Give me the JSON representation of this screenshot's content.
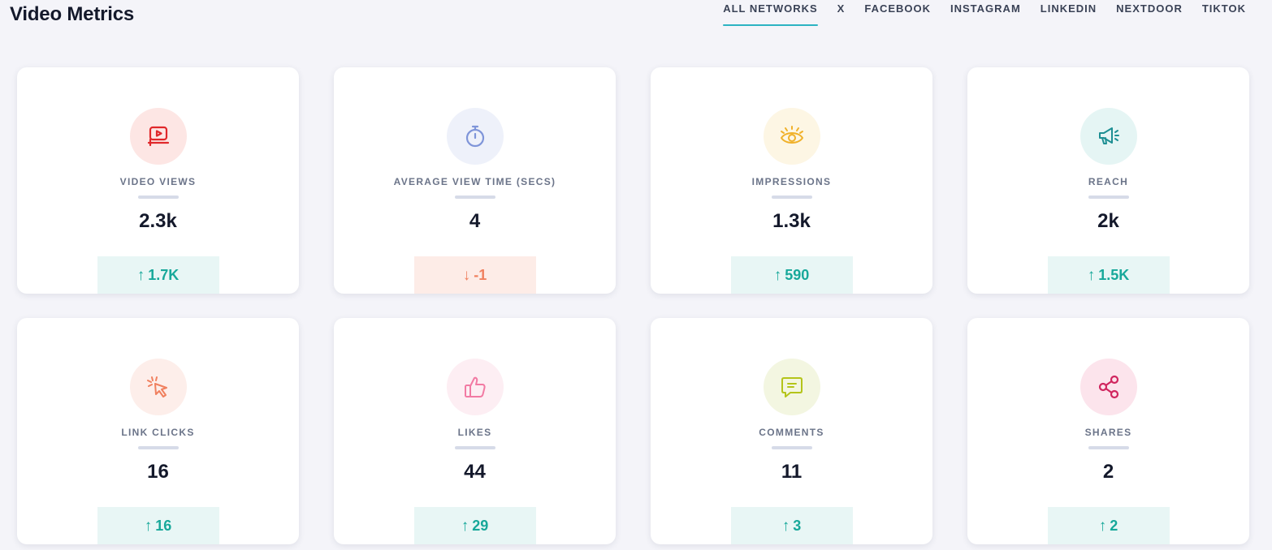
{
  "header": {
    "title": "Video Metrics",
    "tabs": [
      {
        "label": "ALL NETWORKS",
        "active": true
      },
      {
        "label": "X",
        "active": false
      },
      {
        "label": "FACEBOOK",
        "active": false
      },
      {
        "label": "INSTAGRAM",
        "active": false
      },
      {
        "label": "LINKEDIN",
        "active": false
      },
      {
        "label": "NEXTDOOR",
        "active": false
      },
      {
        "label": "TIKTOK",
        "active": false
      }
    ]
  },
  "cards": [
    {
      "label": "VIDEO VIEWS",
      "value": "2.3k",
      "change": "1.7K",
      "direction": "up",
      "icon": "video-play-icon",
      "icon_color": "#e0282b",
      "icon_bg": "#fde6e4"
    },
    {
      "label": "AVERAGE VIEW TIME (SECS)",
      "value": "4",
      "change": "-1",
      "direction": "down",
      "icon": "stopwatch-icon",
      "icon_color": "#7f95d9",
      "icon_bg": "#eef1fa"
    },
    {
      "label": "IMPRESSIONS",
      "value": "1.3k",
      "change": "590",
      "direction": "up",
      "icon": "eye-icon",
      "icon_color": "#f0b12a",
      "icon_bg": "#fdf6e4"
    },
    {
      "label": "REACH",
      "value": "2k",
      "change": "1.5K",
      "direction": "up",
      "icon": "megaphone-icon",
      "icon_color": "#1e8f93",
      "icon_bg": "#e5f5f4"
    },
    {
      "label": "LINK CLICKS",
      "value": "16",
      "change": "16",
      "direction": "up",
      "icon": "cursor-click-icon",
      "icon_color": "#f0805f",
      "icon_bg": "#fdeeea"
    },
    {
      "label": "LIKES",
      "value": "44",
      "change": "29",
      "direction": "up",
      "icon": "thumbs-up-icon",
      "icon_color": "#f27aa3",
      "icon_bg": "#fdeef3"
    },
    {
      "label": "COMMENTS",
      "value": "11",
      "change": "3",
      "direction": "up",
      "icon": "comment-icon",
      "icon_color": "#b4c41a",
      "icon_bg": "#f3f6e1"
    },
    {
      "label": "SHARES",
      "value": "2",
      "change": "2",
      "direction": "up",
      "icon": "share-icon",
      "icon_color": "#d0265f",
      "icon_bg": "#fce4ec"
    }
  ]
}
